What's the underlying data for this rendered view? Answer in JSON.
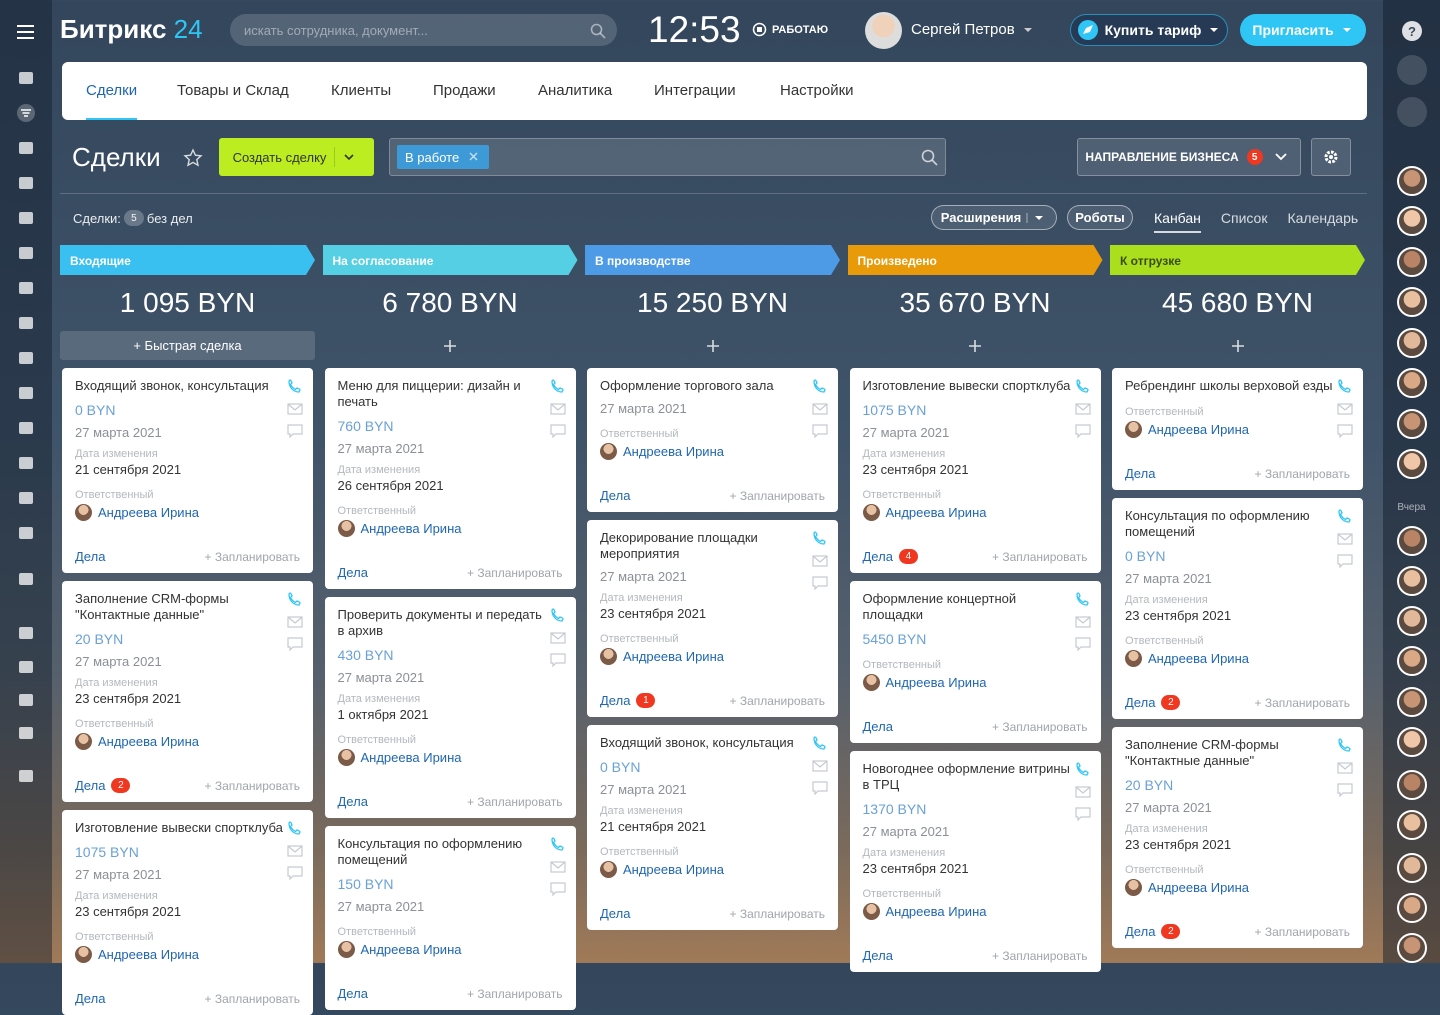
{
  "header": {
    "logo_text": "Битрикс",
    "logo_number": "24",
    "search_placeholder": "искать сотрудника, документ...",
    "time": "12:53",
    "status": "РАБОТАЮ",
    "user_name": "Сергей Петров",
    "buy_button": "Купить тариф",
    "invite_button": "Пригласить",
    "help": "?"
  },
  "nav": {
    "items": [
      "Сделки",
      "Товары и Склад",
      "Клиенты",
      "Продажи",
      "Аналитика",
      "Интеграции",
      "Настройки"
    ],
    "active": 0
  },
  "toolbar": {
    "title": "Сделки",
    "create_button": "Создать сделку",
    "filter_tag": "В работе",
    "direction_button": "НАПРАВЛЕНИЕ БИЗНЕСА",
    "direction_count": 5
  },
  "summary": {
    "label": "Сделки:",
    "count": 5,
    "suffix": "без дел"
  },
  "view": {
    "extensions": "Расширения",
    "robots": "Роботы",
    "modes": [
      "Канбан",
      "Список",
      "Календарь"
    ],
    "active_mode": 0
  },
  "labels": {
    "modified": "Дата изменения",
    "responsible": "Ответственный",
    "tasks": "Дела",
    "plan": "+ Запланировать"
  },
  "columns": [
    {
      "name": "Входящие",
      "color": "#39c0f0",
      "text_color": "#ffffff",
      "total": "1 095 BYN",
      "quick_add": "+ Быстрая сделка",
      "cards": [
        {
          "title": "Входящий звонок, консультация",
          "amount": "0 BYN",
          "created": "27 марта 2021",
          "modified": "21 сентября 2021",
          "responsible": "Андреева Ирина"
        },
        {
          "title": "Заполнение CRM-формы \"Контактные данные\"",
          "amount": "20 BYN",
          "created": "27 марта 2021",
          "modified": "23 сентября 2021",
          "responsible": "Андреева Ирина",
          "tasks": 2
        },
        {
          "title": "Изготовление вывески спортклуба",
          "amount": "1075 BYN",
          "created": "27 марта 2021",
          "modified": "23 сентября 2021",
          "responsible": "Андреева Ирина"
        }
      ]
    },
    {
      "name": "На согласование",
      "color": "#55cfe3",
      "text_color": "#ffffff",
      "total": "6 780 BYN",
      "cards": [
        {
          "title": "Меню для пиццерии: дизайн и печать",
          "amount": "760 BYN",
          "created": "27 марта 2021",
          "modified": "26 сентября 2021",
          "responsible": "Андреева Ирина"
        },
        {
          "title": "Проверить документы и передать в архив",
          "amount": "430 BYN",
          "created": "27 марта 2021",
          "modified": "1 октября 2021",
          "responsible": "Андреева Ирина"
        },
        {
          "title": "Консультация по оформлению помещений",
          "amount": "150 BYN",
          "created": "27 марта 2021",
          "responsible": "Андреева Ирина"
        }
      ]
    },
    {
      "name": "В производстве",
      "color": "#4d9be6",
      "text_color": "#ffffff",
      "total": "15 250 BYN",
      "cards": [
        {
          "title": "Оформление торгового зала",
          "created": "27 марта 2021",
          "responsible": "Андреева Ирина"
        },
        {
          "title": "Декорирование площадки мероприятия",
          "created": "27 марта 2021",
          "modified": "23 сентября 2021",
          "responsible": "Андреева Ирина",
          "tasks": 1
        },
        {
          "title": "Входящий звонок, консультация",
          "amount": "0 BYN",
          "created": "27 марта 2021",
          "modified": "21 сентября 2021",
          "responsible": "Андреева Ирина"
        }
      ]
    },
    {
      "name": "Произведено",
      "color": "#e89a08",
      "text_color": "#ffffff",
      "total": "35 670 BYN",
      "cards": [
        {
          "title": "Изготовление вывески спортклуба",
          "amount": "1075 BYN",
          "created": "27 марта 2021",
          "modified": "23 сентября 2021",
          "responsible": "Андреева Ирина",
          "tasks": 4
        },
        {
          "title": "Оформление концертной площадки",
          "amount": "5450 BYN",
          "responsible": "Андреева Ирина"
        },
        {
          "title": "Новогоднее оформление витрины в ТРЦ",
          "amount": "1370 BYN",
          "created": "27 марта 2021",
          "modified": "23 сентября 2021",
          "responsible": "Андреева Ирина"
        }
      ]
    },
    {
      "name": "К отгрузке",
      "color": "#a9df1c",
      "text_color": "#3b4a10",
      "total": "45 680 BYN",
      "cards": [
        {
          "title": "Ребрендинг школы верховой езды",
          "responsible": "Андреева Ирина"
        },
        {
          "title": "Консультация по оформлению помещений",
          "amount": "0 BYN",
          "created": "27 марта 2021",
          "modified": "23 сентября 2021",
          "responsible": "Андреева Ирина",
          "tasks": 2
        },
        {
          "title": "Заполнение CRM-формы \"Контактные данные\"",
          "amount": "20 BYN",
          "created": "27 марта 2021",
          "modified": "23 сентября 2021",
          "responsible": "Андреева Ирина",
          "tasks": 2
        }
      ]
    }
  ],
  "right_sidebar": {
    "divider": "Вчера"
  }
}
